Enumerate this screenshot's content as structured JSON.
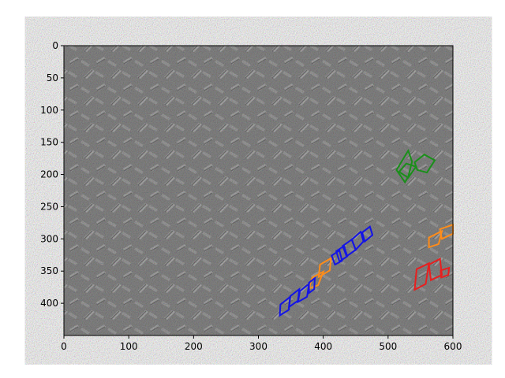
{
  "figure": {
    "xlim": [
      0,
      600
    ],
    "ylim": [
      450,
      0
    ],
    "x_ticks": [
      0,
      100,
      200,
      300,
      400,
      500,
      600
    ],
    "y_ticks": [
      0,
      50,
      100,
      150,
      200,
      250,
      300,
      350,
      400
    ]
  },
  "image": {
    "content": "diamond-plate-steel-texture",
    "base_color": "#8c8c8c"
  },
  "annotations": [
    {
      "id": "green-1",
      "color": "#1a8f1a",
      "points": [
        [
          531,
          163
        ],
        [
          537,
          180
        ],
        [
          531,
          204
        ],
        [
          526,
          212
        ],
        [
          513,
          193
        ]
      ]
    },
    {
      "id": "green-2",
      "color": "#1a8f1a",
      "points": [
        [
          541,
          181
        ],
        [
          556,
          169
        ],
        [
          572,
          178
        ],
        [
          560,
          197
        ],
        [
          545,
          193
        ]
      ]
    },
    {
      "id": "green-3",
      "color": "#1a8f1a",
      "points": [
        [
          517,
          196
        ],
        [
          528,
          183
        ],
        [
          543,
          188
        ],
        [
          531,
          205
        ]
      ]
    },
    {
      "id": "orange-1",
      "color": "#ff8c1a",
      "points": [
        [
          580,
          285
        ],
        [
          600,
          278
        ],
        [
          600,
          292
        ],
        [
          583,
          300
        ]
      ]
    },
    {
      "id": "orange-2",
      "color": "#ff8c1a",
      "points": [
        [
          563,
          298
        ],
        [
          583,
          288
        ],
        [
          578,
          308
        ],
        [
          563,
          313
        ]
      ]
    },
    {
      "id": "orange-3",
      "color": "#ff8c1a",
      "points": [
        [
          395,
          340
        ],
        [
          412,
          330
        ],
        [
          410,
          349
        ],
        [
          393,
          359
        ]
      ]
    },
    {
      "id": "orange-4",
      "color": "#ff8c1a",
      "points": [
        [
          383,
          360
        ],
        [
          400,
          351
        ],
        [
          392,
          372
        ],
        [
          378,
          377
        ]
      ]
    },
    {
      "id": "red-1",
      "color": "#e81f1f",
      "points": [
        [
          544,
          347
        ],
        [
          563,
          338
        ],
        [
          558,
          370
        ],
        [
          541,
          379
        ]
      ]
    },
    {
      "id": "red-2",
      "color": "#e81f1f",
      "points": [
        [
          563,
          340
        ],
        [
          580,
          331
        ],
        [
          583,
          356
        ],
        [
          566,
          364
        ]
      ]
    },
    {
      "id": "red-3",
      "color": "#e81f1f",
      "points": [
        [
          581,
          349
        ],
        [
          594,
          345
        ],
        [
          593,
          356
        ],
        [
          582,
          360
        ]
      ]
    },
    {
      "id": "blue-1",
      "color": "#1414e6",
      "points": [
        [
          413,
          326
        ],
        [
          425,
          318
        ],
        [
          429,
          334
        ],
        [
          418,
          340
        ]
      ]
    },
    {
      "id": "blue-2",
      "color": "#1414e6",
      "points": [
        [
          420,
          319
        ],
        [
          432,
          311
        ],
        [
          437,
          327
        ],
        [
          425,
          335
        ]
      ]
    },
    {
      "id": "blue-3",
      "color": "#1414e6",
      "points": [
        [
          430,
          311
        ],
        [
          444,
          301
        ],
        [
          450,
          317
        ],
        [
          436,
          327
        ]
      ]
    },
    {
      "id": "blue-4",
      "color": "#1414e6",
      "points": [
        [
          444,
          301
        ],
        [
          458,
          289
        ],
        [
          462,
          304
        ],
        [
          450,
          317
        ]
      ]
    },
    {
      "id": "blue-5",
      "color": "#1414e6",
      "points": [
        [
          460,
          290
        ],
        [
          472,
          281
        ],
        [
          476,
          294
        ],
        [
          464,
          304
        ]
      ]
    },
    {
      "id": "blue-6",
      "color": "#1414e6",
      "points": [
        [
          349,
          389
        ],
        [
          363,
          378
        ],
        [
          361,
          396
        ],
        [
          347,
          406
        ]
      ]
    },
    {
      "id": "blue-7",
      "color": "#1414e6",
      "points": [
        [
          364,
          381
        ],
        [
          378,
          370
        ],
        [
          375,
          390
        ],
        [
          361,
          398
        ]
      ]
    },
    {
      "id": "blue-8",
      "color": "#1414e6",
      "points": [
        [
          334,
          402
        ],
        [
          349,
          390
        ],
        [
          347,
          410
        ],
        [
          333,
          419
        ]
      ]
    },
    {
      "id": "blue-9",
      "color": "#1414e6",
      "points": [
        [
          378,
          368
        ],
        [
          387,
          361
        ],
        [
          386,
          378
        ],
        [
          378,
          384
        ]
      ]
    }
  ]
}
